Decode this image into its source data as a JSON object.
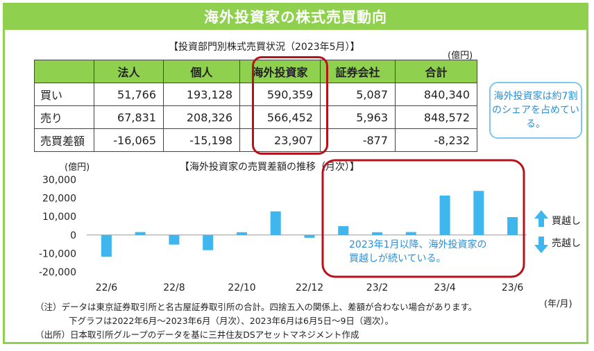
{
  "title": "海外投資家の株式売買動向",
  "table": {
    "title": "【投資部門別株式売買状況（2023年5月）】",
    "unit": "(億円)",
    "headers": [
      "",
      "法人",
      "個人",
      "海外投資家",
      "証券会社",
      "合計"
    ],
    "rows": [
      [
        "買い",
        "51,766",
        "193,128",
        "590,359",
        "5,087",
        "840,340"
      ],
      [
        "売り",
        "67,831",
        "208,326",
        "566,452",
        "5,963",
        "848,572"
      ],
      [
        "売買差額",
        "-16,065",
        "-15,198",
        "23,907",
        "-877",
        "-8,232"
      ]
    ]
  },
  "callout_share": "海外投資家は約7割のシェアを占めている。",
  "chart_data": {
    "type": "bar",
    "title": "【海外投資家の売買差額の推移（月次）】",
    "ylabel": "(億円)",
    "xunit": "(年/月)",
    "ylim": [
      -20000,
      30000
    ],
    "yticks": [
      "30,000",
      "20,000",
      "10,000",
      "0",
      "-10,000",
      "-20,000"
    ],
    "ytick_values": [
      30000,
      20000,
      10000,
      0,
      -10000,
      -20000
    ],
    "categories": [
      "22/6",
      "22/7",
      "22/8",
      "22/9",
      "22/10",
      "22/11",
      "22/12",
      "23/1",
      "23/2",
      "23/3",
      "23/4",
      "23/5",
      "23/6"
    ],
    "xtick_labels": [
      "22/6",
      "",
      "22/8",
      "",
      "22/10",
      "",
      "22/12",
      "",
      "23/2",
      "",
      "23/4",
      "",
      "23/6"
    ],
    "values": [
      -11800,
      1600,
      -5200,
      -8200,
      1500,
      12800,
      -1500,
      4800,
      1500,
      1600,
      21400,
      23907,
      9700
    ],
    "bar_color": "#3fb6ee",
    "annotation": "2023年1月以降、海外投資家の買越しが続いている。",
    "legend_buy": "買越し",
    "legend_sell": "売越し"
  },
  "notes": [
    "（注）データは東京証券取引所と名古屋証券取引所の合計。四捨五入の関係上、差額が合わない場合があります。",
    "下グラフは2022年6月～2023年6月（月次）、2023年6月は6月5日～9日（週次）。",
    "（出所）日本取引所グループのデータを基に三井住友DSアセットマネジメント作成"
  ],
  "colors": {
    "accent": "#8fd14f",
    "highlight": "#b5121b",
    "callout": "#2a8fd6",
    "bar": "#3fb6ee"
  }
}
